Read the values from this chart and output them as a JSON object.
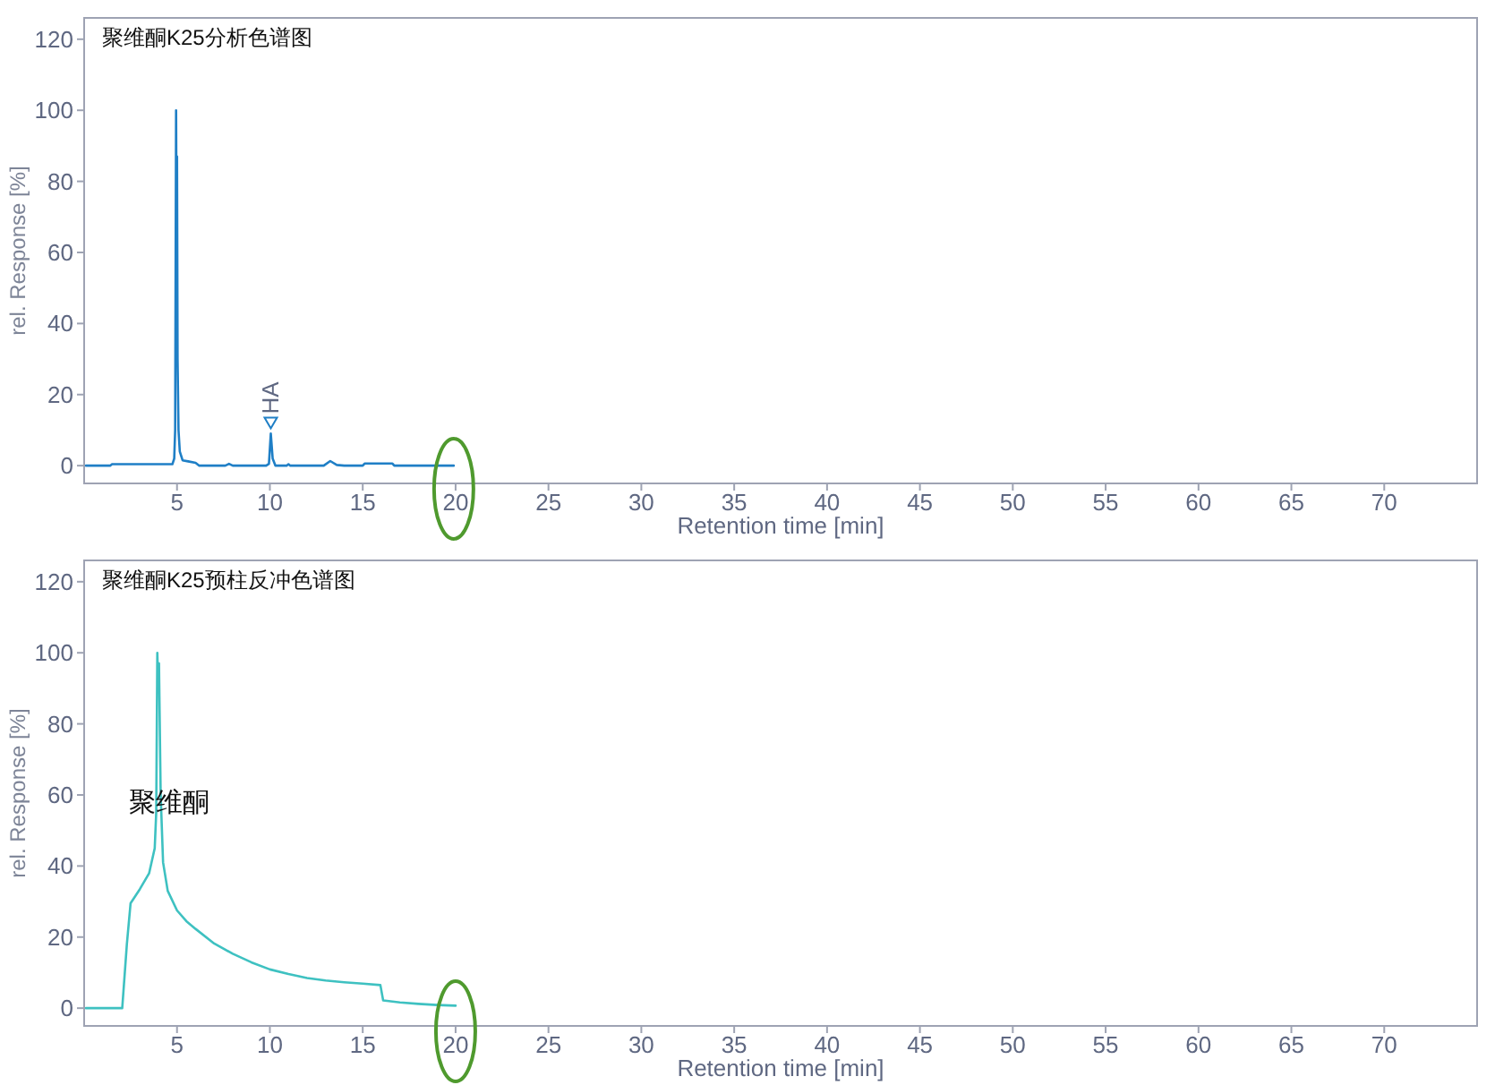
{
  "chart_data": [
    {
      "type": "line",
      "title": "聚维酮K25分析色谱图",
      "xlabel": "Retention time [min]",
      "ylabel": "rel. Response [%]",
      "xlim": [
        0,
        75
      ],
      "xticks": [
        5,
        10,
        15,
        20,
        25,
        30,
        35,
        40,
        45,
        50,
        55,
        60,
        65,
        70
      ],
      "ylim": [
        -5,
        126
      ],
      "yticks": [
        0,
        20,
        40,
        60,
        80,
        100,
        120
      ],
      "series": [
        {
          "color": "#1f7fc6",
          "x": [
            0.1,
            1.4,
            1.5,
            4.75,
            4.85,
            4.9,
            4.95,
            4.98,
            5.0,
            5.03,
            5.08,
            5.15,
            5.3,
            5.6,
            6.0,
            6.2,
            7.6,
            7.8,
            8.0,
            9.8,
            9.95,
            10.05,
            10.15,
            10.3,
            10.9,
            11.0,
            11.1,
            12.9,
            13.25,
            13.6,
            14.0,
            15.0,
            15.1,
            16.6,
            16.7,
            19.9
          ],
          "values": [
            0,
            0,
            0.4,
            0.4,
            2,
            10,
            100,
            60,
            87,
            30,
            10,
            4,
            1.5,
            1.2,
            0.8,
            0,
            0,
            0.5,
            0,
            0,
            0.5,
            9,
            2,
            0,
            0,
            0.4,
            0,
            0,
            1.3,
            0.2,
            0,
            0,
            0.6,
            0.6,
            0,
            0
          ]
        }
      ],
      "annotations": [
        {
          "text": "HA",
          "x": 10.05,
          "y": 9
        }
      ]
    },
    {
      "type": "line",
      "title": "聚维酮K25预柱反冲色谱图",
      "xlabel": "Retention time [min]",
      "ylabel": "rel. Response [%]",
      "xlim": [
        0,
        75
      ],
      "xticks": [
        5,
        10,
        15,
        20,
        25,
        30,
        35,
        40,
        45,
        50,
        55,
        60,
        65,
        70
      ],
      "ylim": [
        -5,
        126
      ],
      "yticks": [
        0,
        20,
        40,
        60,
        80,
        100,
        120
      ],
      "series": [
        {
          "color": "#3ec1c1",
          "x": [
            0.1,
            2.05,
            2.3,
            2.5,
            3.0,
            3.5,
            3.8,
            3.88,
            3.94,
            3.98,
            4.03,
            4.12,
            4.25,
            4.5,
            5.0,
            5.5,
            6.0,
            7.0,
            8.0,
            9.0,
            10.0,
            11.0,
            12.0,
            13.0,
            14.0,
            15.0,
            15.95,
            16.1,
            17.0,
            18.0,
            19.0,
            20.0
          ],
          "values": [
            0,
            0,
            18,
            29.5,
            33.5,
            38,
            45,
            55,
            100,
            92,
            97,
            60,
            41,
            33,
            27.5,
            24.5,
            22.3,
            18.2,
            15.3,
            12.9,
            10.9,
            9.6,
            8.5,
            7.8,
            7.3,
            6.9,
            6.5,
            2.2,
            1.6,
            1.2,
            0.9,
            0.7
          ]
        }
      ],
      "annotations": [
        "聚维酮"
      ]
    }
  ]
}
